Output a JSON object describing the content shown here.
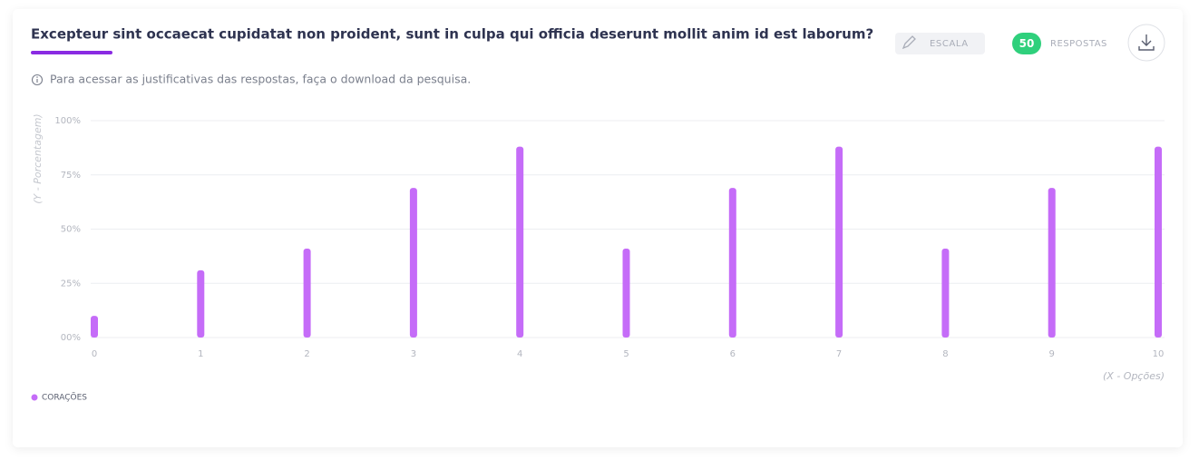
{
  "header": {
    "title": "Excepteur sint occaecat cupidatat non proident, sunt in culpa qui officia deserunt mollit anim id est laborum?",
    "scale_label": "ESCALA",
    "responses_count": 50,
    "responses_label": "RESPOSTAS"
  },
  "info": "Para acessar as justificativas das respostas, faça o download da pesquisa.",
  "chart_data": {
    "type": "bar",
    "ylabel": "(Y - Porcentagem)",
    "xlabel": "(X - Opções)",
    "categories": [
      "0",
      "1",
      "2",
      "3",
      "4",
      "5",
      "6",
      "7",
      "8",
      "9",
      "10"
    ],
    "series": [
      {
        "name": "CORAÇÕES",
        "color": "#c56cf8",
        "values": [
          10,
          31,
          41,
          69,
          88,
          41,
          69,
          88,
          41,
          69,
          88
        ]
      }
    ],
    "ylim": [
      0,
      100
    ],
    "yticks": [
      {
        "value": 0,
        "label": "00%"
      },
      {
        "value": 25,
        "label": "25%"
      },
      {
        "value": 50,
        "label": "50%"
      },
      {
        "value": 75,
        "label": "75%"
      },
      {
        "value": 100,
        "label": "100%"
      }
    ],
    "grid": true,
    "legend": "bottom-left"
  }
}
